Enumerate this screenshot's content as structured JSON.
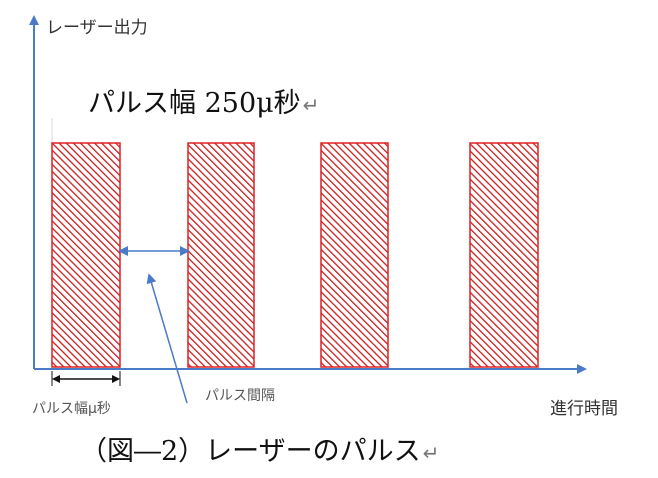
{
  "diagram": {
    "y_axis_label": "レーザー出力",
    "x_axis_label": "進行時間",
    "heading": "パルス幅 250μ秒",
    "pulse_width_label": "パルス幅μ秒",
    "pulse_interval_label": "パルス間隔",
    "caption": "（図―2）レーザーのパルス",
    "return_mark": "↵",
    "pulse_count": 4,
    "colors": {
      "pulse_border": "#e02020",
      "pulse_hatch": "#c81e1e",
      "axis": "#4a7ac8",
      "annotation_arrow": "#4a7ac8",
      "dimension_line": "#111111"
    }
  }
}
